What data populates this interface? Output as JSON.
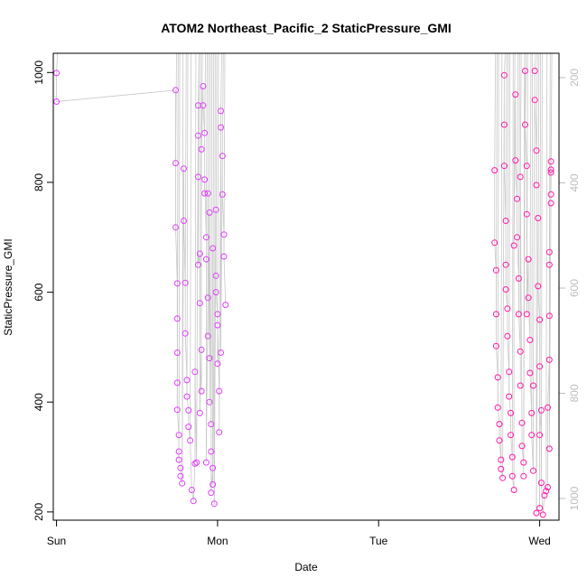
{
  "chart_data": {
    "type": "scatter",
    "title": "ATOM2 Northeast_Pacific_2 StaticPressure_GMI",
    "xlabel": "Date",
    "ylabel": "StaticPressure_GMI",
    "x_ticks": [
      "Sun",
      "Mon",
      "Tue",
      "Wed"
    ],
    "y_ticks": [
      "200",
      "400",
      "600",
      "800",
      "1000"
    ],
    "y_ticks_right": [
      "200",
      "400",
      "600",
      "800",
      "1000"
    ],
    "xlim_days": [
      -0.02,
      3.12
    ],
    "ylim": [
      185,
      1035
    ],
    "right_axis_inverted": true,
    "grid": false,
    "colors": {
      "magenta": "#e040fb",
      "pink": "#ff1aa8",
      "profile_line": "#c8c8c8",
      "right_axis": "#bdbdbd"
    },
    "series": [
      {
        "color_key": "magenta",
        "points": [
          [
            0.0,
            999
          ],
          [
            0.0,
            947
          ],
          [
            0.74,
            968
          ],
          [
            0.74,
            835
          ],
          [
            0.74,
            718
          ],
          [
            0.75,
            616
          ],
          [
            0.75,
            552
          ],
          [
            0.75,
            490
          ],
          [
            0.75,
            435
          ],
          [
            0.75,
            386
          ],
          [
            0.76,
            340
          ],
          [
            0.76,
            310
          ],
          [
            0.76,
            295
          ],
          [
            0.77,
            280
          ],
          [
            0.77,
            265
          ],
          [
            0.78,
            252
          ],
          [
            0.79,
            825
          ],
          [
            0.79,
            730
          ],
          [
            0.8,
            617
          ],
          [
            0.8,
            525
          ],
          [
            0.81,
            440
          ],
          [
            0.81,
            410
          ],
          [
            0.82,
            385
          ],
          [
            0.82,
            355
          ],
          [
            0.83,
            330
          ],
          [
            0.84,
            240
          ],
          [
            0.85,
            220
          ],
          [
            0.86,
            288
          ],
          [
            0.87,
            290
          ],
          [
            0.88,
            940
          ],
          [
            0.88,
            885
          ],
          [
            0.88,
            810
          ],
          [
            0.89,
            670
          ],
          [
            0.89,
            580
          ],
          [
            0.9,
            495
          ],
          [
            0.9,
            420
          ],
          [
            0.91,
            975
          ],
          [
            0.91,
            940
          ],
          [
            0.92,
            890
          ],
          [
            0.92,
            780
          ],
          [
            0.93,
            700
          ],
          [
            0.93,
            660
          ],
          [
            0.94,
            590
          ],
          [
            0.94,
            520
          ],
          [
            0.95,
            480
          ],
          [
            0.95,
            400
          ],
          [
            0.96,
            360
          ],
          [
            0.96,
            310
          ],
          [
            0.97,
            280
          ],
          [
            0.97,
            250
          ],
          [
            0.98,
            215
          ],
          [
            0.99,
            750
          ],
          [
            0.99,
            630
          ],
          [
            1.0,
            560
          ],
          [
            1.0,
            470
          ],
          [
            1.01,
            420
          ],
          [
            1.01,
            345
          ],
          [
            1.02,
            930
          ],
          [
            1.02,
            900
          ],
          [
            1.03,
            848
          ],
          [
            1.03,
            778
          ],
          [
            1.04,
            705
          ],
          [
            1.04,
            665
          ],
          [
            1.05,
            577
          ],
          [
            0.88,
            650
          ],
          [
            0.9,
            860
          ],
          [
            0.92,
            805
          ],
          [
            0.95,
            745
          ],
          [
            0.97,
            680
          ],
          [
            0.99,
            600
          ],
          [
            1.0,
            540
          ],
          [
            1.02,
            490
          ],
          [
            0.86,
            455
          ],
          [
            0.89,
            380
          ],
          [
            0.93,
            290
          ],
          [
            0.96,
            235
          ],
          [
            0.94,
            780
          ]
        ]
      },
      {
        "color_key": "pink",
        "points": [
          [
            2.72,
            822
          ],
          [
            2.72,
            690
          ],
          [
            2.73,
            640
          ],
          [
            2.73,
            560
          ],
          [
            2.73,
            502
          ],
          [
            2.74,
            445
          ],
          [
            2.74,
            390
          ],
          [
            2.75,
            360
          ],
          [
            2.75,
            330
          ],
          [
            2.76,
            295
          ],
          [
            2.76,
            278
          ],
          [
            2.77,
            262
          ],
          [
            2.78,
            995
          ],
          [
            2.78,
            905
          ],
          [
            2.78,
            830
          ],
          [
            2.79,
            730
          ],
          [
            2.79,
            650
          ],
          [
            2.8,
            570
          ],
          [
            2.8,
            520
          ],
          [
            2.81,
            455
          ],
          [
            2.81,
            410
          ],
          [
            2.82,
            380
          ],
          [
            2.82,
            340
          ],
          [
            2.83,
            300
          ],
          [
            2.83,
            265
          ],
          [
            2.84,
            240
          ],
          [
            2.85,
            960
          ],
          [
            2.85,
            840
          ],
          [
            2.86,
            770
          ],
          [
            2.86,
            700
          ],
          [
            2.87,
            625
          ],
          [
            2.87,
            560
          ],
          [
            2.88,
            492
          ],
          [
            2.88,
            430
          ],
          [
            2.89,
            362
          ],
          [
            2.89,
            320
          ],
          [
            2.9,
            290
          ],
          [
            2.9,
            265
          ],
          [
            2.91,
            1003
          ],
          [
            2.91,
            905
          ],
          [
            2.92,
            830
          ],
          [
            2.92,
            742
          ],
          [
            2.93,
            660
          ],
          [
            2.93,
            590
          ],
          [
            2.94,
            513
          ],
          [
            2.94,
            453
          ],
          [
            2.95,
            380
          ],
          [
            2.95,
            340
          ],
          [
            2.96,
            275
          ],
          [
            2.97,
            1003
          ],
          [
            2.97,
            950
          ],
          [
            2.98,
            858
          ],
          [
            2.98,
            795
          ],
          [
            2.99,
            735
          ],
          [
            2.99,
            611
          ],
          [
            3.0,
            550
          ],
          [
            3.0,
            465
          ],
          [
            3.01,
            385
          ],
          [
            3.01,
            253
          ],
          [
            3.02,
            195
          ],
          [
            3.03,
            230
          ],
          [
            3.04,
            238
          ],
          [
            3.05,
            245
          ],
          [
            3.05,
            390
          ],
          [
            3.06,
            477
          ],
          [
            3.06,
            557
          ],
          [
            3.06,
            650
          ],
          [
            3.06,
            673
          ],
          [
            3.07,
            762
          ],
          [
            3.07,
            778
          ],
          [
            3.07,
            818
          ],
          [
            3.07,
            823
          ],
          [
            3.07,
            838
          ],
          [
            3.06,
            315
          ],
          [
            2.98,
            198
          ],
          [
            3.0,
            207
          ],
          [
            2.79,
            605
          ],
          [
            2.84,
            685
          ],
          [
            2.88,
            810
          ],
          [
            2.92,
            560
          ],
          [
            2.96,
            430
          ],
          [
            3.0,
            340
          ]
        ]
      }
    ]
  }
}
